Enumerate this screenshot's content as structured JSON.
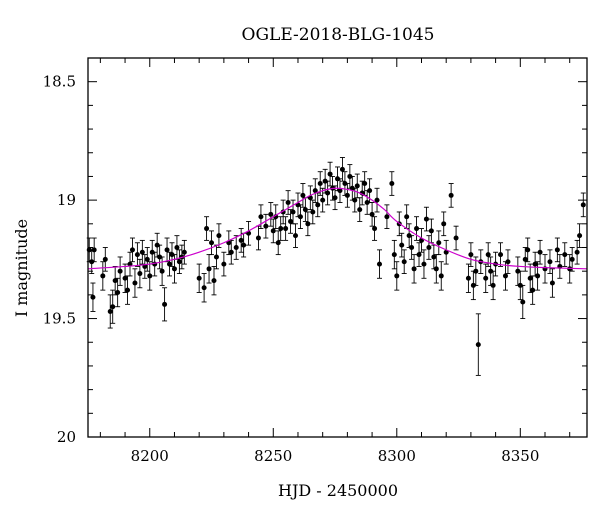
{
  "chart_data": {
    "type": "scatter",
    "title": "OGLE-2018-BLG-1045",
    "xlabel": "HJD - 2450000",
    "ylabel": "I magnitude",
    "xlim": [
      8175,
      8377
    ],
    "ylim": [
      18.4,
      20
    ],
    "y_inverted": true,
    "x_ticks": [
      8200,
      8250,
      8300,
      8350
    ],
    "x_tick_labels": [
      "8200",
      "8250",
      "8300",
      "8350"
    ],
    "y_ticks": [
      18.5,
      19,
      19.5,
      20
    ],
    "y_tick_labels": [
      "18.5",
      "19",
      "19.5",
      "20"
    ],
    "grid": false,
    "colors": {
      "data": "#000000",
      "model": "#cc00cc"
    },
    "model_curve": {
      "x": [
        8175,
        8190,
        8200,
        8210,
        8220,
        8230,
        8240,
        8250,
        8255,
        8260,
        8265,
        8270,
        8275,
        8280,
        8285,
        8290,
        8295,
        8300,
        8310,
        8320,
        8330,
        8340,
        8350,
        8360,
        8377
      ],
      "y": [
        19.29,
        19.28,
        19.27,
        19.25,
        19.22,
        19.18,
        19.13,
        19.07,
        19.04,
        19.01,
        18.98,
        18.96,
        18.95,
        18.955,
        18.97,
        19.0,
        19.04,
        19.09,
        19.16,
        19.21,
        19.25,
        19.27,
        19.28,
        19.285,
        19.29
      ]
    },
    "points": [
      {
        "x": 8175.5,
        "y": 19.21,
        "e": 0.05
      },
      {
        "x": 8176.5,
        "y": 19.26,
        "e": 0.05
      },
      {
        "x": 8177.0,
        "y": 19.41,
        "e": 0.06
      },
      {
        "x": 8177.5,
        "y": 19.21,
        "e": 0.05
      },
      {
        "x": 8181.0,
        "y": 19.32,
        "e": 0.06
      },
      {
        "x": 8182.0,
        "y": 19.25,
        "e": 0.05
      },
      {
        "x": 8184.0,
        "y": 19.47,
        "e": 0.07
      },
      {
        "x": 8185.0,
        "y": 19.45,
        "e": 0.07
      },
      {
        "x": 8186.0,
        "y": 19.34,
        "e": 0.06
      },
      {
        "x": 8187.0,
        "y": 19.39,
        "e": 0.06
      },
      {
        "x": 8188.0,
        "y": 19.3,
        "e": 0.06
      },
      {
        "x": 8190.0,
        "y": 19.33,
        "e": 0.06
      },
      {
        "x": 8191.0,
        "y": 19.38,
        "e": 0.06
      },
      {
        "x": 8192.0,
        "y": 19.27,
        "e": 0.05
      },
      {
        "x": 8193.0,
        "y": 19.21,
        "e": 0.05
      },
      {
        "x": 8194.0,
        "y": 19.35,
        "e": 0.06
      },
      {
        "x": 8195.0,
        "y": 19.23,
        "e": 0.05
      },
      {
        "x": 8196.0,
        "y": 19.31,
        "e": 0.06
      },
      {
        "x": 8197.0,
        "y": 19.22,
        "e": 0.05
      },
      {
        "x": 8198.0,
        "y": 19.28,
        "e": 0.05
      },
      {
        "x": 8199.0,
        "y": 19.25,
        "e": 0.05
      },
      {
        "x": 8200.0,
        "y": 19.32,
        "e": 0.06
      },
      {
        "x": 8201.0,
        "y": 19.22,
        "e": 0.05
      },
      {
        "x": 8202.0,
        "y": 19.27,
        "e": 0.05
      },
      {
        "x": 8203.0,
        "y": 19.19,
        "e": 0.05
      },
      {
        "x": 8204.0,
        "y": 19.24,
        "e": 0.05
      },
      {
        "x": 8205.0,
        "y": 19.3,
        "e": 0.06
      },
      {
        "x": 8206.0,
        "y": 19.44,
        "e": 0.07
      },
      {
        "x": 8207.0,
        "y": 19.21,
        "e": 0.05
      },
      {
        "x": 8208.0,
        "y": 19.27,
        "e": 0.05
      },
      {
        "x": 8209.0,
        "y": 19.23,
        "e": 0.05
      },
      {
        "x": 8210.0,
        "y": 19.29,
        "e": 0.06
      },
      {
        "x": 8211.0,
        "y": 19.2,
        "e": 0.05
      },
      {
        "x": 8212.0,
        "y": 19.26,
        "e": 0.05
      },
      {
        "x": 8213.0,
        "y": 19.24,
        "e": 0.05
      },
      {
        "x": 8214.0,
        "y": 19.22,
        "e": 0.05
      },
      {
        "x": 8220.0,
        "y": 19.33,
        "e": 0.06
      },
      {
        "x": 8222.0,
        "y": 19.37,
        "e": 0.06
      },
      {
        "x": 8223.0,
        "y": 19.12,
        "e": 0.05
      },
      {
        "x": 8224.0,
        "y": 19.29,
        "e": 0.06
      },
      {
        "x": 8225.0,
        "y": 19.18,
        "e": 0.05
      },
      {
        "x": 8226.0,
        "y": 19.34,
        "e": 0.06
      },
      {
        "x": 8227.0,
        "y": 19.24,
        "e": 0.05
      },
      {
        "x": 8228.0,
        "y": 19.15,
        "e": 0.05
      },
      {
        "x": 8230.0,
        "y": 19.27,
        "e": 0.05
      },
      {
        "x": 8232.0,
        "y": 19.18,
        "e": 0.05
      },
      {
        "x": 8233.0,
        "y": 19.22,
        "e": 0.05
      },
      {
        "x": 8235.0,
        "y": 19.2,
        "e": 0.05
      },
      {
        "x": 8237.0,
        "y": 19.17,
        "e": 0.05
      },
      {
        "x": 8238.0,
        "y": 19.19,
        "e": 0.05
      },
      {
        "x": 8240.0,
        "y": 19.14,
        "e": 0.05
      },
      {
        "x": 8244.0,
        "y": 19.16,
        "e": 0.05
      },
      {
        "x": 8245.0,
        "y": 19.07,
        "e": 0.05
      },
      {
        "x": 8247.0,
        "y": 19.11,
        "e": 0.05
      },
      {
        "x": 8249.0,
        "y": 19.06,
        "e": 0.05
      },
      {
        "x": 8250.0,
        "y": 19.13,
        "e": 0.05
      },
      {
        "x": 8251.0,
        "y": 19.07,
        "e": 0.05
      },
      {
        "x": 8252.0,
        "y": 19.18,
        "e": 0.05
      },
      {
        "x": 8253.0,
        "y": 19.12,
        "e": 0.05
      },
      {
        "x": 8254.0,
        "y": 19.05,
        "e": 0.05
      },
      {
        "x": 8255.0,
        "y": 19.12,
        "e": 0.05
      },
      {
        "x": 8256.0,
        "y": 19.01,
        "e": 0.05
      },
      {
        "x": 8257.0,
        "y": 19.09,
        "e": 0.05
      },
      {
        "x": 8258.0,
        "y": 19.05,
        "e": 0.05
      },
      {
        "x": 8259.0,
        "y": 19.15,
        "e": 0.05
      },
      {
        "x": 8260.0,
        "y": 19.02,
        "e": 0.05
      },
      {
        "x": 8261.0,
        "y": 19.07,
        "e": 0.05
      },
      {
        "x": 8262.0,
        "y": 18.98,
        "e": 0.05
      },
      {
        "x": 8263.0,
        "y": 19.04,
        "e": 0.05
      },
      {
        "x": 8264.0,
        "y": 19.1,
        "e": 0.05
      },
      {
        "x": 8265.0,
        "y": 18.99,
        "e": 0.05
      },
      {
        "x": 8266.0,
        "y": 19.05,
        "e": 0.05
      },
      {
        "x": 8267.0,
        "y": 18.96,
        "e": 0.05
      },
      {
        "x": 8268.0,
        "y": 19.02,
        "e": 0.05
      },
      {
        "x": 8269.0,
        "y": 18.93,
        "e": 0.05
      },
      {
        "x": 8270.0,
        "y": 19.0,
        "e": 0.05
      },
      {
        "x": 8271.0,
        "y": 18.92,
        "e": 0.05
      },
      {
        "x": 8272.0,
        "y": 18.97,
        "e": 0.05
      },
      {
        "x": 8273.0,
        "y": 18.89,
        "e": 0.05
      },
      {
        "x": 8274.0,
        "y": 18.95,
        "e": 0.05
      },
      {
        "x": 8275.0,
        "y": 18.99,
        "e": 0.05
      },
      {
        "x": 8276.0,
        "y": 18.91,
        "e": 0.05
      },
      {
        "x": 8277.0,
        "y": 18.96,
        "e": 0.05
      },
      {
        "x": 8278.0,
        "y": 18.87,
        "e": 0.05
      },
      {
        "x": 8279.0,
        "y": 18.93,
        "e": 0.05
      },
      {
        "x": 8280.0,
        "y": 18.98,
        "e": 0.05
      },
      {
        "x": 8281.0,
        "y": 18.9,
        "e": 0.05
      },
      {
        "x": 8282.0,
        "y": 18.95,
        "e": 0.05
      },
      {
        "x": 8283.0,
        "y": 19.0,
        "e": 0.05
      },
      {
        "x": 8284.0,
        "y": 18.94,
        "e": 0.05
      },
      {
        "x": 8285.0,
        "y": 19.04,
        "e": 0.05
      },
      {
        "x": 8286.0,
        "y": 18.97,
        "e": 0.05
      },
      {
        "x": 8287.0,
        "y": 18.93,
        "e": 0.05
      },
      {
        "x": 8288.0,
        "y": 19.01,
        "e": 0.05
      },
      {
        "x": 8289.0,
        "y": 18.96,
        "e": 0.05
      },
      {
        "x": 8290.0,
        "y": 19.06,
        "e": 0.05
      },
      {
        "x": 8291.0,
        "y": 19.12,
        "e": 0.05
      },
      {
        "x": 8292.0,
        "y": 19.0,
        "e": 0.05
      },
      {
        "x": 8293.0,
        "y": 19.27,
        "e": 0.06
      },
      {
        "x": 8296.0,
        "y": 19.07,
        "e": 0.05
      },
      {
        "x": 8298.0,
        "y": 18.93,
        "e": 0.05
      },
      {
        "x": 8299.0,
        "y": 19.23,
        "e": 0.06
      },
      {
        "x": 8300.0,
        "y": 19.32,
        "e": 0.06
      },
      {
        "x": 8301.0,
        "y": 19.1,
        "e": 0.05
      },
      {
        "x": 8302.0,
        "y": 19.19,
        "e": 0.05
      },
      {
        "x": 8303.0,
        "y": 19.26,
        "e": 0.05
      },
      {
        "x": 8304.0,
        "y": 19.07,
        "e": 0.05
      },
      {
        "x": 8305.0,
        "y": 19.15,
        "e": 0.05
      },
      {
        "x": 8306.0,
        "y": 19.2,
        "e": 0.05
      },
      {
        "x": 8307.0,
        "y": 19.29,
        "e": 0.06
      },
      {
        "x": 8308.0,
        "y": 19.12,
        "e": 0.05
      },
      {
        "x": 8309.0,
        "y": 19.23,
        "e": 0.05
      },
      {
        "x": 8310.0,
        "y": 19.17,
        "e": 0.05
      },
      {
        "x": 8311.0,
        "y": 19.27,
        "e": 0.06
      },
      {
        "x": 8312.0,
        "y": 19.08,
        "e": 0.05
      },
      {
        "x": 8313.0,
        "y": 19.2,
        "e": 0.05
      },
      {
        "x": 8314.0,
        "y": 19.13,
        "e": 0.05
      },
      {
        "x": 8315.0,
        "y": 19.24,
        "e": 0.05
      },
      {
        "x": 8316.0,
        "y": 19.29,
        "e": 0.06
      },
      {
        "x": 8317.0,
        "y": 19.18,
        "e": 0.05
      },
      {
        "x": 8318.0,
        "y": 19.32,
        "e": 0.06
      },
      {
        "x": 8319.0,
        "y": 19.1,
        "e": 0.05
      },
      {
        "x": 8320.0,
        "y": 19.22,
        "e": 0.05
      },
      {
        "x": 8322.0,
        "y": 18.98,
        "e": 0.05
      },
      {
        "x": 8324.0,
        "y": 19.16,
        "e": 0.05
      },
      {
        "x": 8329.0,
        "y": 19.33,
        "e": 0.06
      },
      {
        "x": 8330.0,
        "y": 19.23,
        "e": 0.05
      },
      {
        "x": 8331.0,
        "y": 19.36,
        "e": 0.06
      },
      {
        "x": 8332.0,
        "y": 19.3,
        "e": 0.06
      },
      {
        "x": 8333.0,
        "y": 19.61,
        "e": 0.13
      },
      {
        "x": 8334.0,
        "y": 19.26,
        "e": 0.05
      },
      {
        "x": 8336.0,
        "y": 19.33,
        "e": 0.06
      },
      {
        "x": 8337.0,
        "y": 19.23,
        "e": 0.05
      },
      {
        "x": 8338.0,
        "y": 19.3,
        "e": 0.06
      },
      {
        "x": 8339.0,
        "y": 19.36,
        "e": 0.06
      },
      {
        "x": 8340.0,
        "y": 19.27,
        "e": 0.05
      },
      {
        "x": 8342.0,
        "y": 19.23,
        "e": 0.05
      },
      {
        "x": 8344.0,
        "y": 19.32,
        "e": 0.06
      },
      {
        "x": 8345.0,
        "y": 19.26,
        "e": 0.05
      },
      {
        "x": 8349.0,
        "y": 19.3,
        "e": 0.06
      },
      {
        "x": 8350.0,
        "y": 19.36,
        "e": 0.06
      },
      {
        "x": 8351.0,
        "y": 19.43,
        "e": 0.07
      },
      {
        "x": 8352.0,
        "y": 19.25,
        "e": 0.05
      },
      {
        "x": 8353.0,
        "y": 19.21,
        "e": 0.05
      },
      {
        "x": 8354.0,
        "y": 19.33,
        "e": 0.06
      },
      {
        "x": 8355.0,
        "y": 19.38,
        "e": 0.06
      },
      {
        "x": 8356.0,
        "y": 19.27,
        "e": 0.05
      },
      {
        "x": 8357.0,
        "y": 19.32,
        "e": 0.06
      },
      {
        "x": 8358.0,
        "y": 19.22,
        "e": 0.05
      },
      {
        "x": 8360.0,
        "y": 19.29,
        "e": 0.06
      },
      {
        "x": 8362.0,
        "y": 19.26,
        "e": 0.05
      },
      {
        "x": 8363.0,
        "y": 19.35,
        "e": 0.06
      },
      {
        "x": 8365.0,
        "y": 19.21,
        "e": 0.05
      },
      {
        "x": 8366.0,
        "y": 19.28,
        "e": 0.05
      },
      {
        "x": 8368.0,
        "y": 19.23,
        "e": 0.05
      },
      {
        "x": 8370.0,
        "y": 19.29,
        "e": 0.06
      },
      {
        "x": 8371.0,
        "y": 19.25,
        "e": 0.05
      },
      {
        "x": 8373.0,
        "y": 19.22,
        "e": 0.05
      },
      {
        "x": 8374.0,
        "y": 19.15,
        "e": 0.05
      },
      {
        "x": 8375.5,
        "y": 19.02,
        "e": 0.05
      }
    ]
  }
}
